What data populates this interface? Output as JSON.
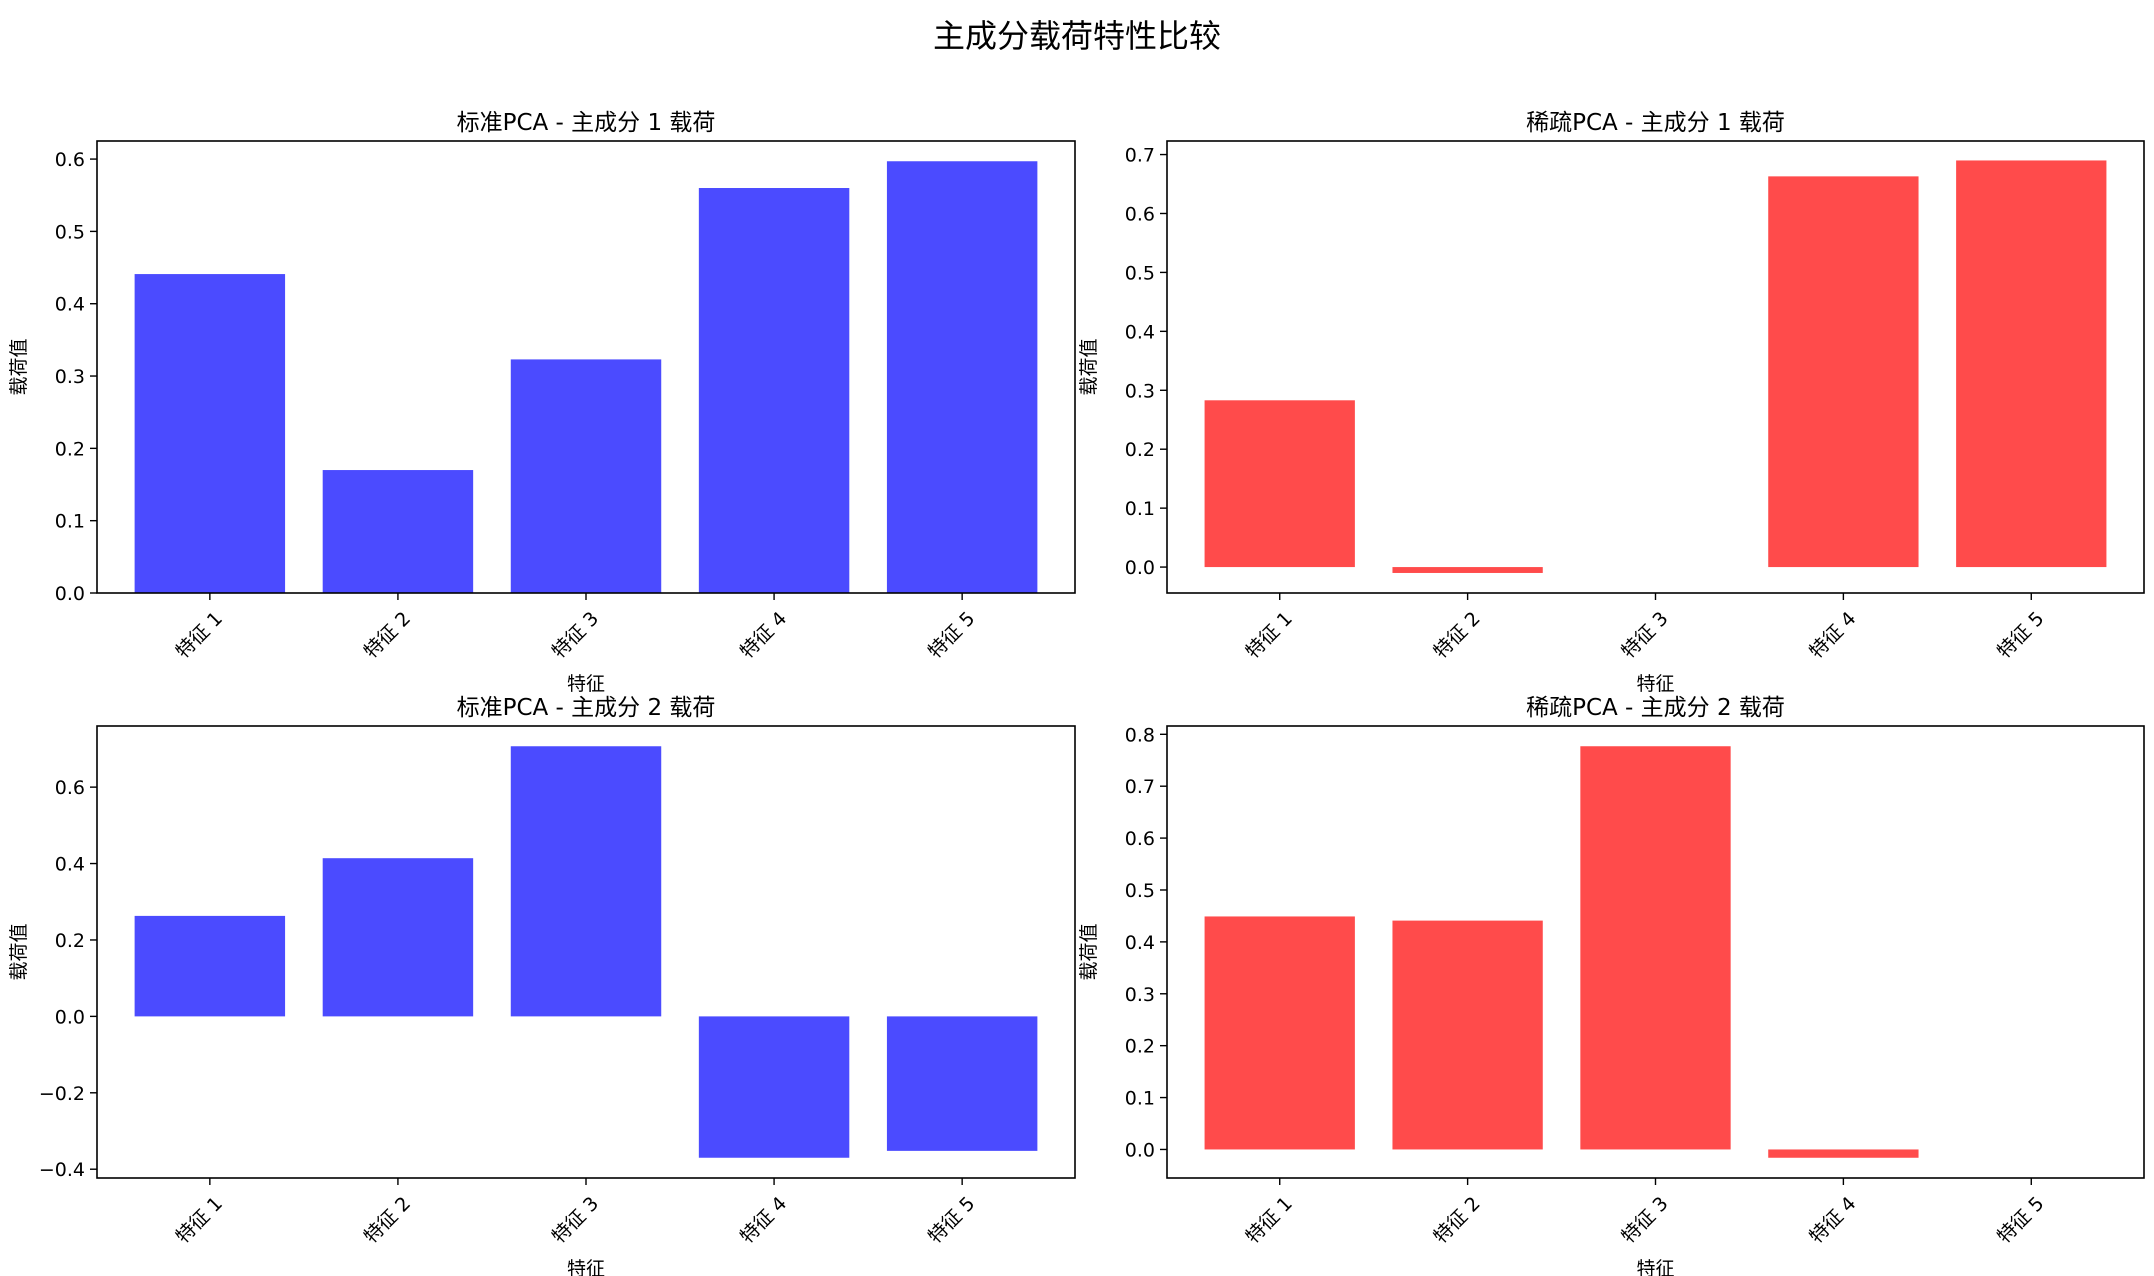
{
  "figure": {
    "title": "主成分载荷特性比较"
  },
  "colors": {
    "standard": "#4b4bff",
    "sparse": "#ff4b4b"
  },
  "chart_data": [
    {
      "type": "bar",
      "title": "标准PCA - 主成分 1 载荷",
      "categories": [
        "特征 1",
        "特征 2",
        "特征 3",
        "特征 4",
        "特征 5"
      ],
      "values": [
        0.441,
        0.17,
        0.323,
        0.56,
        0.597
      ],
      "xlabel": "特征",
      "ylabel": "载荷值",
      "ylim": [
        0.0,
        0.625
      ],
      "yticks": [
        0.0,
        0.1,
        0.2,
        0.3,
        0.4,
        0.5,
        0.6
      ],
      "tick_format": 1,
      "color": "#4b4bff",
      "grid": false
    },
    {
      "type": "bar",
      "title": "稀疏PCA - 主成分 1 载荷",
      "categories": [
        "特征 1",
        "特征 2",
        "特征 3",
        "特征 4",
        "特征 5"
      ],
      "values": [
        0.283,
        -0.01,
        0.0,
        0.663,
        0.69
      ],
      "xlabel": "特征",
      "ylabel": "载荷值",
      "ylim": [
        -0.044,
        0.723
      ],
      "yticks": [
        0.0,
        0.1,
        0.2,
        0.3,
        0.4,
        0.5,
        0.6,
        0.7
      ],
      "tick_format": 1,
      "color": "#ff4b4b",
      "grid": false
    },
    {
      "type": "bar",
      "title": "标准PCA - 主成分 2 载荷",
      "categories": [
        "特征 1",
        "特征 2",
        "特征 3",
        "特征 4",
        "特征 5"
      ],
      "values": [
        0.263,
        0.414,
        0.707,
        -0.37,
        -0.352
      ],
      "xlabel": "特征",
      "ylabel": "载荷值",
      "ylim": [
        -0.423,
        0.76
      ],
      "yticks": [
        -0.4,
        -0.2,
        0.0,
        0.2,
        0.4,
        0.6
      ],
      "tick_format": 1,
      "color": "#4b4bff",
      "grid": false
    },
    {
      "type": "bar",
      "title": "稀疏PCA - 主成分 2 载荷",
      "categories": [
        "特征 1",
        "特征 2",
        "特征 3",
        "特征 4",
        "特征 5"
      ],
      "values": [
        0.449,
        0.441,
        0.777,
        -0.016,
        0.0
      ],
      "xlabel": "特征",
      "ylabel": "载荷值",
      "ylim": [
        -0.055,
        0.816
      ],
      "yticks": [
        0.0,
        0.1,
        0.2,
        0.3,
        0.4,
        0.5,
        0.6,
        0.7,
        0.8
      ],
      "tick_format": 1,
      "color": "#ff4b4b",
      "grid": false
    }
  ]
}
